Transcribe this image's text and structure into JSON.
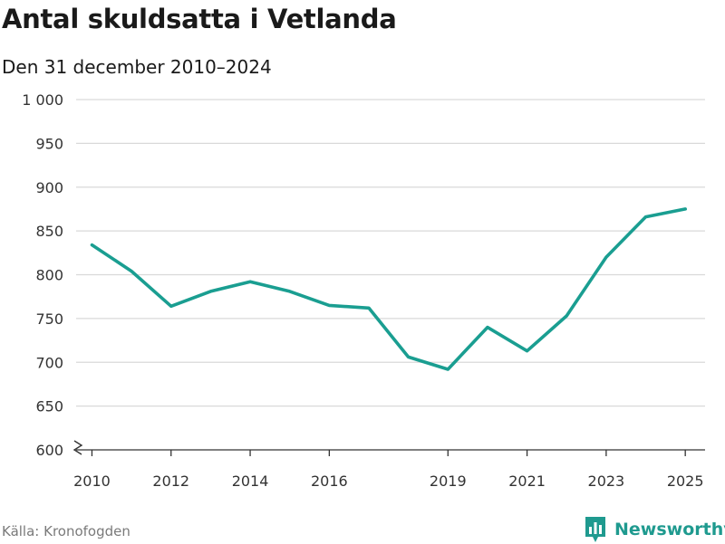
{
  "title": "Antal skuldsatta i Vetlanda",
  "subtitle": "Den 31 december 2010–2024",
  "source": "Källa: Kronofogden",
  "brand": {
    "name": "Newsworthy",
    "icon": "bar-chart-logo-icon"
  },
  "colors": {
    "line": "#1a9e91",
    "grid": "#d9d9d9",
    "axis": "#333333",
    "brand": "#1f9a8f"
  },
  "chart_data": {
    "type": "line",
    "title": "Antal skuldsatta i Vetlanda",
    "subtitle": "Den 31 december 2010–2024",
    "xlabel": "",
    "ylabel": "",
    "x": [
      2010,
      2011,
      2012,
      2013,
      2014,
      2015,
      2016,
      2017,
      2018,
      2019,
      2020,
      2021,
      2022,
      2023,
      2024,
      2025
    ],
    "values": [
      834,
      804,
      764,
      781,
      792,
      781,
      765,
      762,
      706,
      692,
      740,
      713,
      753,
      820,
      866,
      875
    ],
    "ylim": [
      600,
      1000
    ],
    "xlim": [
      2009.6,
      2025.5
    ],
    "yticks": [
      600,
      650,
      700,
      750,
      800,
      850,
      900,
      950,
      1000
    ],
    "ytick_labels": [
      "600",
      "650",
      "700",
      "750",
      "800",
      "850",
      "900",
      "950",
      "1 000"
    ],
    "xticks": [
      2010,
      2012,
      2014,
      2016,
      2019,
      2021,
      2023,
      2025
    ],
    "xtick_labels": [
      "2010",
      "2012",
      "2014",
      "2016",
      "2019",
      "2021",
      "2023",
      "2025"
    ],
    "grid": true,
    "axis_break": true,
    "legend": "none"
  }
}
